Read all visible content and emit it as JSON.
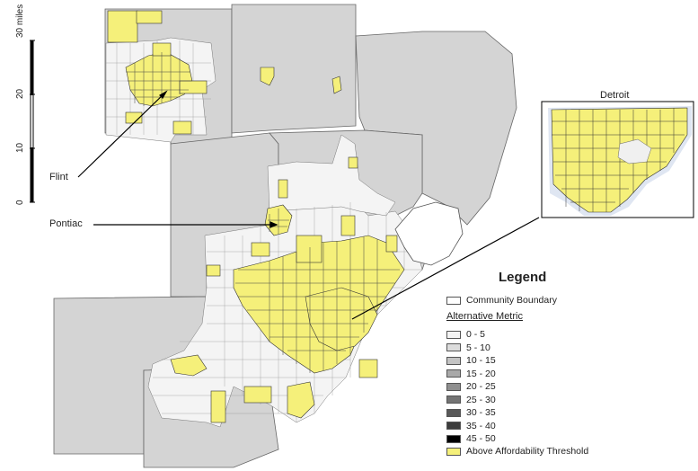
{
  "scale_bar": {
    "unit_label": "30 miles",
    "ticks": [
      "0",
      "10",
      "20"
    ]
  },
  "city_labels": {
    "flint": "Flint",
    "pontiac": "Pontiac"
  },
  "inset": {
    "title": "Detroit"
  },
  "legend": {
    "title": "Legend",
    "boundary_label": "Community Boundary",
    "metric_heading": "Alternative Metric",
    "classes": [
      {
        "label": "0 - 5",
        "color": "#f4f4f4"
      },
      {
        "label": "5 - 10",
        "color": "#dcdcdc"
      },
      {
        "label": "10 - 15",
        "color": "#c4c4c4"
      },
      {
        "label": "15 - 20",
        "color": "#a9a9a9"
      },
      {
        "label": "20 - 25",
        "color": "#8f8f8f"
      },
      {
        "label": "25 - 30",
        "color": "#747474"
      },
      {
        "label": "30 - 35",
        "color": "#595959"
      },
      {
        "label": "35 - 40",
        "color": "#3c3c3c"
      },
      {
        "label": "45 - 50",
        "color": "#000000"
      }
    ],
    "threshold_label": "Above Affordability Threshold",
    "threshold_color": "#f5f07a"
  },
  "colors": {
    "county_fill": "#d4d4d4",
    "tract_fill": "#f4f4f4",
    "highlight": "#f5f07a",
    "boundary": "#333333"
  }
}
